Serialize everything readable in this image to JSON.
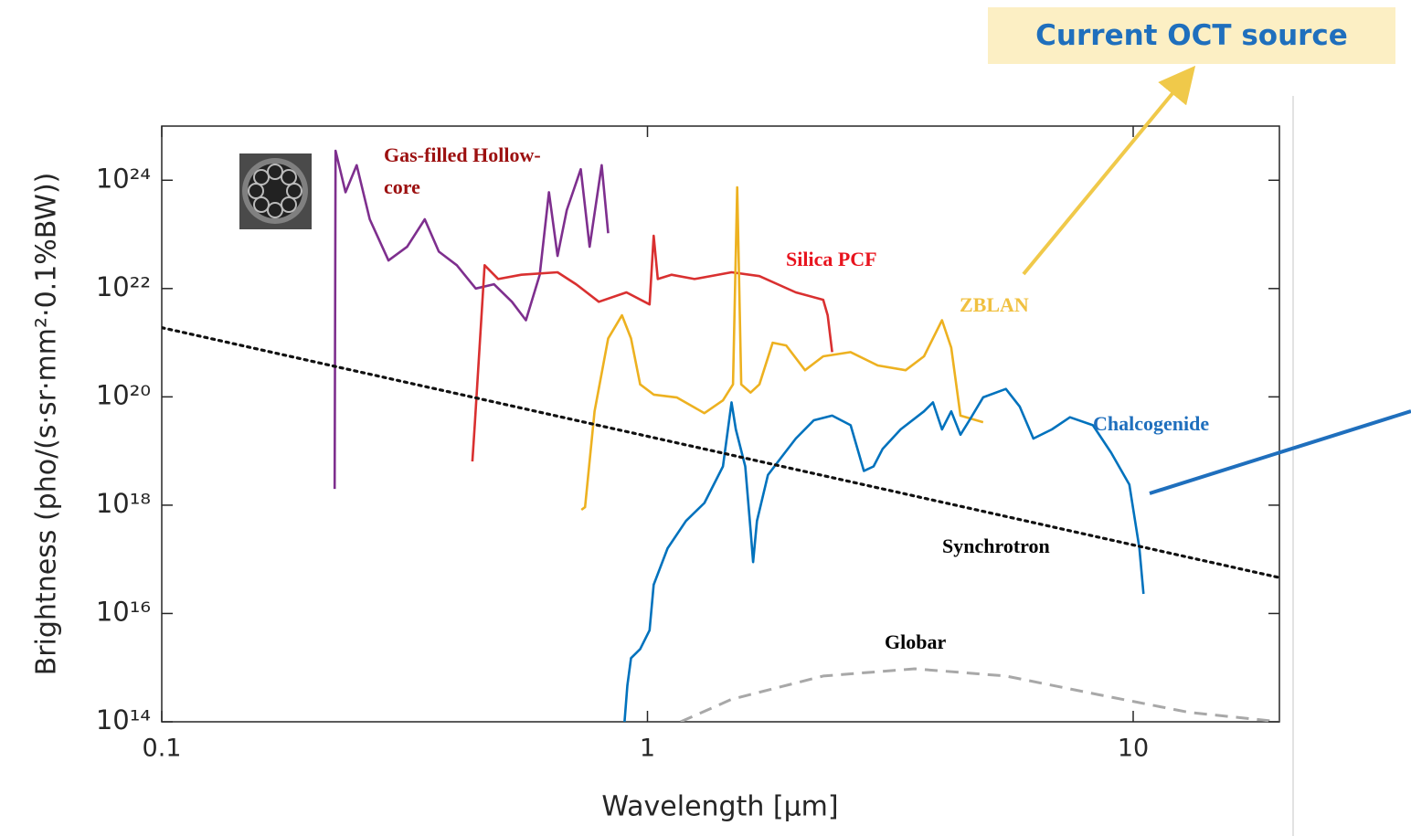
{
  "chart_data": {
    "type": "line",
    "xlabel": "Wavelength  [μm]",
    "ylabel": "Brightness (pho/(s·sr·mm²·0.1%BW))",
    "xscale": "log",
    "yscale": "log",
    "xlim": [
      0.1,
      20
    ],
    "ylim": [
      100000000000000.0,
      1e+25
    ],
    "xticks": [
      0.1,
      1,
      10
    ],
    "yticks": [
      {
        "value": 100000000000000.0,
        "label": "10¹⁴"
      },
      {
        "value": 1e+16,
        "label": "10¹⁶"
      },
      {
        "value": 1e+18,
        "label": "10¹⁸"
      },
      {
        "value": 1e+20,
        "label": "10²⁰"
      },
      {
        "value": 1e+22,
        "label": "10²²"
      },
      {
        "value": 1e+24,
        "label": "10²⁴"
      }
    ],
    "annotation": "Current OCT source",
    "series": [
      {
        "name": "Gas-filled Hollow-core",
        "color": "#7e2f8e",
        "label_color": "#9c1010",
        "style": "solid",
        "x": [
          0.227,
          0.228,
          0.239,
          0.252,
          0.268,
          0.293,
          0.32,
          0.348,
          0.372,
          0.405,
          0.443,
          0.483,
          0.526,
          0.562,
          0.6,
          0.627,
          0.653,
          0.682,
          0.729,
          0.76,
          0.805,
          0.83
        ],
        "values": [
          2e+18,
          3.5e+24,
          6e+23,
          1.9e+24,
          1.9e+23,
          3.3e+22,
          5.9e+22,
          1.9e+23,
          4.8e+22,
          2.7e+22,
          1e+22,
          1.2e+22,
          5.7e+21,
          2.6e+21,
          1.8e+22,
          6e+23,
          4e+22,
          2.8e+23,
          1.6e+24,
          5.9e+22,
          1.9e+24,
          1.05e+23
        ]
      },
      {
        "name": "Silica PCF",
        "color": "#d93030",
        "label_color": "#e8141e",
        "style": "solid",
        "x": [
          0.436,
          0.441,
          0.462,
          0.493,
          0.55,
          0.653,
          0.713,
          0.794,
          0.905,
          1.01,
          1.03,
          1.05,
          1.12,
          1.25,
          1.49,
          1.7,
          2.02,
          2.3,
          2.35,
          2.4
        ],
        "values": [
          6.4e+18,
          3e+19,
          2.7e+22,
          1.5e+22,
          1.8e+22,
          2e+22,
          1.2e+22,
          5.7e+21,
          8.5e+21,
          5.1e+21,
          9.4e+22,
          1.5e+22,
          1.8e+22,
          1.5e+22,
          2e+22,
          1.7e+22,
          8.5e+21,
          6.2e+21,
          3.2e+21,
          6.7e+20
        ]
      },
      {
        "name": "ZBLAN",
        "color": "#edb120",
        "label_color": "#f0c040",
        "style": "solid",
        "x": [
          0.731,
          0.744,
          0.778,
          0.83,
          0.886,
          0.925,
          0.966,
          1.03,
          1.15,
          1.31,
          1.43,
          1.5,
          1.53,
          1.56,
          1.63,
          1.7,
          1.81,
          1.93,
          2.11,
          2.3,
          2.62,
          2.98,
          3.4,
          3.71,
          4.04,
          4.22,
          4.41,
          4.91
        ],
        "values": [
          8.2e+17,
          9.2e+17,
          5.4e+19,
          1.2e+21,
          3.2e+21,
          1.2e+21,
          1.7e+20,
          1.1e+20,
          9.7e+19,
          5e+19,
          8.6e+19,
          1.7e+20,
          7.4e+23,
          1.7e+20,
          1.2e+20,
          1.7e+20,
          1e+21,
          8.9e+20,
          3.1e+20,
          5.6e+20,
          6.7e+20,
          3.8e+20,
          3.1e+20,
          5.6e+20,
          2.6e+21,
          8.1e+20,
          4.5e+19,
          3.4e+19
        ]
      },
      {
        "name": "Chalcogenide",
        "color": "#0072bd",
        "label_color": "#1f6fbd",
        "style": "solid",
        "x": [
          0.897,
          0.909,
          0.925,
          0.966,
          1.01,
          1.03,
          1.1,
          1.2,
          1.31,
          1.43,
          1.49,
          1.52,
          1.59,
          1.63,
          1.65,
          1.68,
          1.77,
          1.89,
          2.02,
          2.2,
          2.4,
          2.62,
          2.79,
          2.92,
          3.05,
          3.32,
          3.71,
          3.87,
          4.04,
          4.22,
          4.41,
          4.6,
          4.91,
          5.47,
          5.84,
          6.23,
          6.8,
          7.41,
          8.26,
          9.01,
          9.82,
          10.3,
          10.5
        ],
        "values": [
          100000000000000.0,
          470000000000000.0,
          1500000000000000.0,
          2200000000000000.0,
          4900000000000000.0,
          3.4e+16,
          1.6e+17,
          5.1e+17,
          1.1e+18,
          5.2e+18,
          7.9e+19,
          2.5e+19,
          5.2e+18,
          3.5e+17,
          8.9e+16,
          5.1e+17,
          3.6e+18,
          7.8e+18,
          1.7e+19,
          3.7e+19,
          4.5e+19,
          3e+19,
          4.3e+18,
          5.2e+18,
          1.1e+19,
          2.5e+19,
          5.4e+19,
          7.9e+19,
          2.5e+19,
          5.4e+19,
          2e+19,
          3.7e+19,
          9.8e+19,
          1.4e+20,
          6.6e+19,
          1.7e+19,
          2.5e+19,
          4.2e+19,
          3e+19,
          9.3e+18,
          2.4e+18,
          1.6e+17,
          2.3e+16
        ]
      },
      {
        "name": "Synchrotron",
        "color": "#111111",
        "label_color": "#000000",
        "style": "dotted",
        "x": [
          0.1,
          20
        ],
        "values": [
          1.9e+21,
          4.6e+16
        ]
      },
      {
        "name": "Globar",
        "color": "#a8a8a8",
        "label_color": "#000000",
        "style": "dashed",
        "x": [
          1.17,
          1.49,
          2.3,
          3.55,
          5.47,
          8.45,
          13.0,
          20
        ],
        "values": [
          100000000000000.0,
          260000000000000.0,
          700000000000000.0,
          950000000000000.0,
          700000000000000.0,
          320000000000000.0,
          150000000000000.0,
          100000000000000.0
        ]
      }
    ]
  }
}
